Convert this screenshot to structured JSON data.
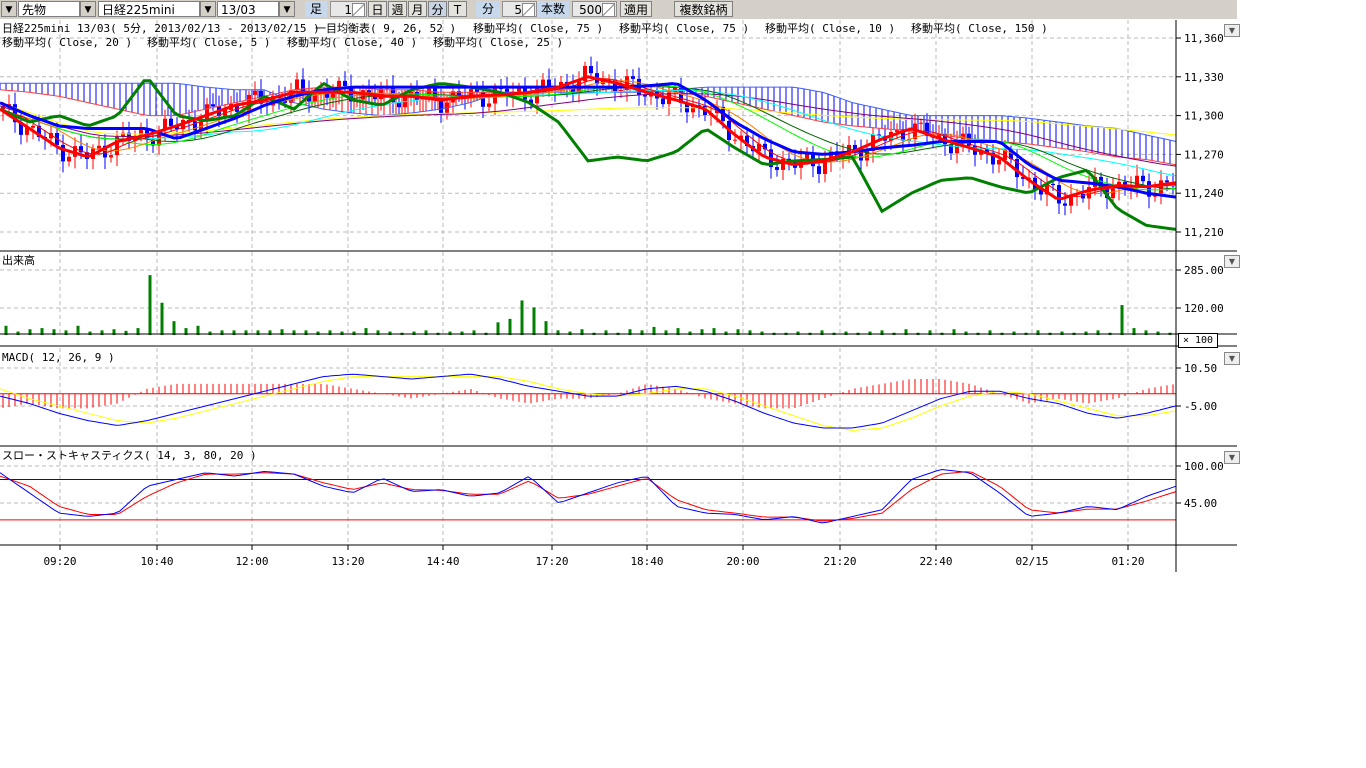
{
  "toolbar": {
    "market": "先物",
    "symbol": "日経225mini",
    "contract": "13/03",
    "ashi_label": "足",
    "ashi_value": "1",
    "day": "日",
    "week": "週",
    "month": "月",
    "minute": "分",
    "tick": "T",
    "interval_label": "分",
    "interval_value": "5",
    "count_label": "本数",
    "count_value": "500",
    "apply": "適用",
    "multi": "複数銘柄"
  },
  "legend": {
    "title": "日経225mini 13/03( 5分, 2013/02/13 - 2013/02/15 )",
    "items": [
      "一目均衡表( 9, 26, 52 )",
      "移動平均( Close, 75 )",
      "移動平均( Close, 75 )",
      "移動平均( Close, 10 )",
      "移動平均( Close, 150 )",
      "移動平均( Close, 20 )",
      "移動平均( Close, 5 )",
      "移動平均( Close, 40 )",
      "移動平均( Close, 25 )"
    ]
  },
  "panels": {
    "volume": "出来高",
    "macd": "MACD( 12, 26, 9 )",
    "stoch": "スロー・ストキャスティクス( 14, 3, 80, 20 )",
    "volume_scale": "× 100"
  },
  "colors": {
    "up": "#ff0000",
    "down": "#0000ff",
    "tenkan": "#ff0000",
    "kijun": "#0000ff",
    "chikou": "#008000",
    "volume": "#008000",
    "macd": "#0000ff",
    "signal": "#ffff00",
    "hist": "#ff0000",
    "k": "#0000ff",
    "d": "#ff0000"
  },
  "chart_data": [
    {
      "type": "candlestick",
      "panel": "price",
      "y_ticks": [
        "11,360",
        "11,330",
        "11,300",
        "11,270",
        "11,240",
        "11,210"
      ],
      "ylim": [
        11195,
        11375
      ],
      "x_ticks": [
        "09:20",
        "10:40",
        "12:00",
        "13:20",
        "14:40",
        "17:20",
        "18:40",
        "20:00",
        "21:20",
        "22:40",
        "02/15",
        "01:20"
      ],
      "grid": true,
      "close": [
        11305,
        11290,
        11275,
        11268,
        11280,
        11285,
        11292,
        11300,
        11308,
        11312,
        11318,
        11318,
        11318,
        11315,
        11315,
        11312,
        11315,
        11316,
        11318,
        11322,
        11330,
        11325,
        11318,
        11312,
        11305,
        11285,
        11268,
        11262,
        11265,
        11272,
        11282,
        11290,
        11282,
        11275,
        11268,
        11250,
        11235,
        11242,
        11246,
        11245,
        11248
      ],
      "chikou": [
        11305,
        11295,
        11300,
        11292,
        11300,
        11330,
        11300,
        11296,
        11300,
        11315,
        11305,
        11325,
        11312,
        11308,
        11320,
        11325,
        11322,
        11318,
        11310,
        11295,
        11265,
        11268,
        11265,
        11272,
        11290,
        11275,
        11262,
        11265,
        11266,
        11268,
        11226,
        11240,
        11250,
        11252,
        11245,
        11240,
        11252,
        11258,
        11228,
        11215,
        11212
      ],
      "kijun": [
        11310,
        11300,
        11292,
        11290,
        11290,
        11290,
        11282,
        11290,
        11298,
        11308,
        11315,
        11320,
        11322,
        11322,
        11322,
        11322,
        11322,
        11322,
        11322,
        11322,
        11322,
        11322,
        11323,
        11325,
        11312,
        11295,
        11282,
        11272,
        11270,
        11272,
        11275,
        11277,
        11280,
        11280,
        11280,
        11262,
        11250,
        11248,
        11245,
        11240,
        11237
      ],
      "span_a": [
        11320,
        11318,
        11315,
        11310,
        11305,
        11300,
        11300,
        11305,
        11310,
        11315,
        11320,
        11322,
        11322,
        11320,
        11320,
        11318,
        11318,
        11318,
        11318,
        11320,
        11322,
        11322,
        11320,
        11318,
        11315,
        11310,
        11305,
        11300,
        11295,
        11292,
        11290,
        11288,
        11285,
        11282,
        11280,
        11278,
        11275,
        11272,
        11268,
        11266,
        11262
      ],
      "span_b": [
        11325,
        11325,
        11325,
        11325,
        11325,
        11325,
        11325,
        11322,
        11320,
        11320,
        11310,
        11305,
        11302,
        11300,
        11302,
        11305,
        11310,
        11318,
        11318,
        11318,
        11318,
        11318,
        11318,
        11320,
        11322,
        11322,
        11322,
        11322,
        11318,
        11310,
        11305,
        11300,
        11300,
        11300,
        11300,
        11298,
        11295,
        11292,
        11290,
        11285,
        11280
      ]
    },
    {
      "type": "bar",
      "panel": "volume",
      "y_ticks": [
        "285.00",
        "120.00"
      ],
      "ylim": [
        0,
        360
      ],
      "values": [
        40,
        15,
        25,
        30,
        25,
        20,
        40,
        15,
        20,
        25,
        18,
        30,
        260,
        140,
        60,
        30,
        40,
        15,
        20,
        20,
        20,
        20,
        20,
        25,
        20,
        20,
        15,
        20,
        15,
        15,
        30,
        20,
        15,
        10,
        15,
        20,
        10,
        15,
        15,
        20,
        10,
        55,
        70,
        150,
        120,
        60,
        20,
        15,
        25,
        10,
        20,
        10,
        25,
        20,
        35,
        20,
        30,
        15,
        25,
        30,
        15,
        25,
        20,
        15,
        10,
        10,
        15,
        10,
        20,
        10,
        15,
        10,
        15,
        20,
        10,
        25,
        10,
        20,
        10,
        25,
        15,
        10,
        20,
        10,
        15,
        10,
        20,
        10,
        15,
        10,
        15,
        20,
        10,
        130,
        30,
        20,
        15,
        10
      ]
    },
    {
      "type": "line",
      "panel": "macd",
      "y_ticks": [
        "10.50",
        "-5.00"
      ],
      "ylim": [
        -17,
        20
      ],
      "series": [
        {
          "values": [
            -1,
            -4,
            -8,
            -11,
            -13,
            -11,
            -8,
            -5,
            -2,
            1,
            4,
            7,
            8,
            7,
            6,
            7,
            8,
            6,
            3,
            1,
            -1,
            -1,
            2,
            3,
            1,
            -3,
            -8,
            -12,
            -14,
            -14,
            -12,
            -7,
            -2,
            1,
            1,
            -2,
            -4,
            -8,
            -10,
            -8,
            -5
          ]
        },
        {
          "values": [
            2,
            -2,
            -5,
            -8,
            -11,
            -12,
            -10,
            -7,
            -4,
            -1,
            2,
            5,
            7,
            7,
            7,
            7,
            7,
            7,
            5,
            2,
            0,
            -1,
            0,
            2,
            2,
            -1,
            -5,
            -9,
            -13,
            -15,
            -14,
            -10,
            -5,
            -1,
            1,
            0,
            -3,
            -6,
            -9,
            -9,
            -7
          ]
        }
      ]
    },
    {
      "type": "line",
      "panel": "stochastics",
      "y_ticks": [
        "100.00",
        "45.00"
      ],
      "ylim": [
        0,
        115
      ],
      "bands": [
        80,
        20
      ],
      "series": [
        {
          "values": [
            90,
            60,
            30,
            25,
            30,
            70,
            80,
            90,
            85,
            92,
            88,
            70,
            60,
            82,
            62,
            65,
            55,
            60,
            85,
            45,
            60,
            75,
            85,
            40,
            30,
            28,
            20,
            25,
            15,
            25,
            35,
            80,
            95,
            90,
            60,
            25,
            30,
            40,
            35,
            55,
            70
          ]
        },
        {
          "values": [
            85,
            70,
            40,
            28,
            28,
            55,
            75,
            88,
            88,
            90,
            88,
            75,
            65,
            75,
            65,
            64,
            58,
            58,
            78,
            52,
            58,
            70,
            82,
            50,
            35,
            30,
            24,
            24,
            18,
            22,
            30,
            65,
            88,
            92,
            70,
            35,
            30,
            36,
            36,
            48,
            62
          ]
        }
      ]
    }
  ]
}
